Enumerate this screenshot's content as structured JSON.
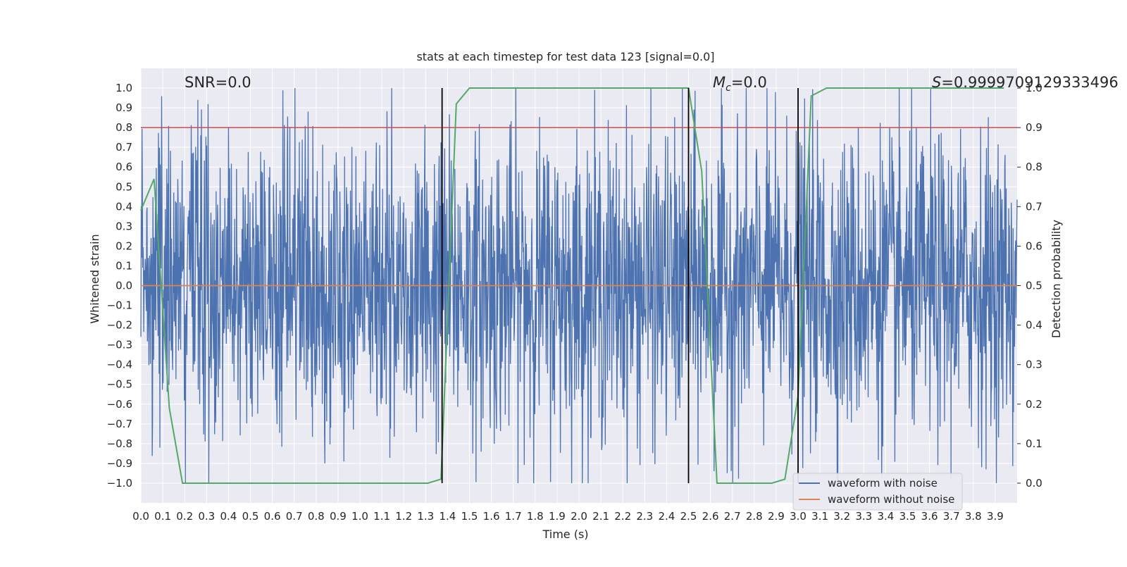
{
  "chart_data": {
    "type": "line",
    "title": "stats at each timestep for test data 123 [signal=0.0]",
    "xlabel": "Time (s)",
    "ylabel": "Whitened strain",
    "y2label": "Detection probability",
    "xlim": [
      0.0,
      4.0
    ],
    "ylim": [
      -1.1,
      1.1
    ],
    "y2lim": [
      -0.05,
      1.05
    ],
    "xticks": [
      "0.0",
      "0.1",
      "0.2",
      "0.3",
      "0.4",
      "0.5",
      "0.6",
      "0.7",
      "0.8",
      "0.9",
      "1.0",
      "1.1",
      "1.2",
      "1.3",
      "1.4",
      "1.5",
      "1.6",
      "1.7",
      "1.8",
      "1.9",
      "2.0",
      "2.1",
      "2.2",
      "2.3",
      "2.4",
      "2.5",
      "2.6",
      "2.7",
      "2.8",
      "2.9",
      "3.0",
      "3.1",
      "3.2",
      "3.3",
      "3.4",
      "3.5",
      "3.6",
      "3.7",
      "3.8",
      "3.9"
    ],
    "yticks": [
      "1.0",
      "0.9",
      "0.8",
      "0.7",
      "0.6",
      "0.5",
      "0.4",
      "0.3",
      "0.2",
      "0.1",
      "0.0",
      "-0.1",
      "-0.2",
      "-0.3",
      "-0.4",
      "-0.5",
      "-0.6",
      "-0.7",
      "-0.8",
      "-0.9",
      "-1.0"
    ],
    "y2ticks": [
      "1.0",
      "0.9",
      "0.8",
      "0.7",
      "0.6",
      "0.5",
      "0.4",
      "0.3",
      "0.2",
      "0.1",
      "0.0"
    ],
    "grid": true,
    "legend_position": "lower-right",
    "annotations": {
      "snr": "SNR=0.0",
      "mc_symbol": "M",
      "mc_sub": "c",
      "mc_value": "=0.0",
      "s_symbol": "S",
      "s_value": "=0.9999709129333496"
    },
    "noise_amplitude": 0.38,
    "colors": {
      "noisy": "#4c72b0",
      "clean": "#dd8452",
      "probability": "#55a868",
      "threshold": "#c44e52",
      "markers": "#000000",
      "background": "#eaeaf2",
      "grid": "#ffffff"
    },
    "series": [
      {
        "name": "waveform with noise",
        "axis": "left"
      },
      {
        "name": "waveform without noise",
        "axis": "left",
        "x": [
          0.0,
          4.0
        ],
        "y": [
          0.0,
          0.0
        ]
      },
      {
        "axis": "right",
        "x": [
          0.0,
          0.06,
          0.13,
          0.19,
          0.25,
          0.31,
          0.38,
          0.44,
          0.5,
          0.56,
          0.63,
          0.69,
          0.75,
          0.81,
          0.88,
          0.94,
          1.0,
          1.06,
          1.13,
          1.19,
          1.25,
          1.31,
          1.37,
          1.44,
          1.5,
          1.56,
          1.63,
          1.69,
          1.75,
          1.81,
          1.88,
          1.94,
          2.0,
          2.06,
          2.13,
          2.19,
          2.25,
          2.31,
          2.38,
          2.44,
          2.5,
          2.56,
          2.63,
          2.69,
          2.75,
          2.81,
          2.88,
          2.94,
          3.0,
          3.06,
          3.13,
          3.19,
          3.25,
          3.31,
          3.38,
          3.44,
          3.5,
          3.56,
          3.63,
          3.69,
          3.75,
          3.81,
          3.88,
          3.94
        ],
        "y": [
          0.69,
          0.77,
          0.19,
          0.0,
          0.0,
          0.0,
          0.0,
          0.0,
          0.0,
          0.0,
          0.0,
          0.0,
          0.0,
          0.0,
          0.0,
          0.0,
          0.0,
          0.0,
          0.0,
          0.0,
          0.0,
          0.0,
          0.01,
          0.96,
          1.0,
          1.0,
          1.0,
          1.0,
          1.0,
          1.0,
          1.0,
          1.0,
          1.0,
          1.0,
          1.0,
          1.0,
          1.0,
          1.0,
          1.0,
          1.0,
          1.0,
          0.79,
          0.0,
          0.0,
          0.0,
          0.0,
          0.0,
          0.01,
          0.22,
          0.98,
          1.0,
          1.0,
          1.0,
          1.0,
          1.0,
          1.0,
          1.0,
          1.0,
          1.0,
          1.0,
          1.0,
          1.0,
          1.0,
          1.0
        ]
      },
      {
        "axis": "right",
        "x": [
          0.0,
          4.0
        ],
        "y": [
          0.9,
          0.9
        ]
      }
    ],
    "vertical_markers": [
      1.375,
      2.5,
      3.0
    ]
  }
}
